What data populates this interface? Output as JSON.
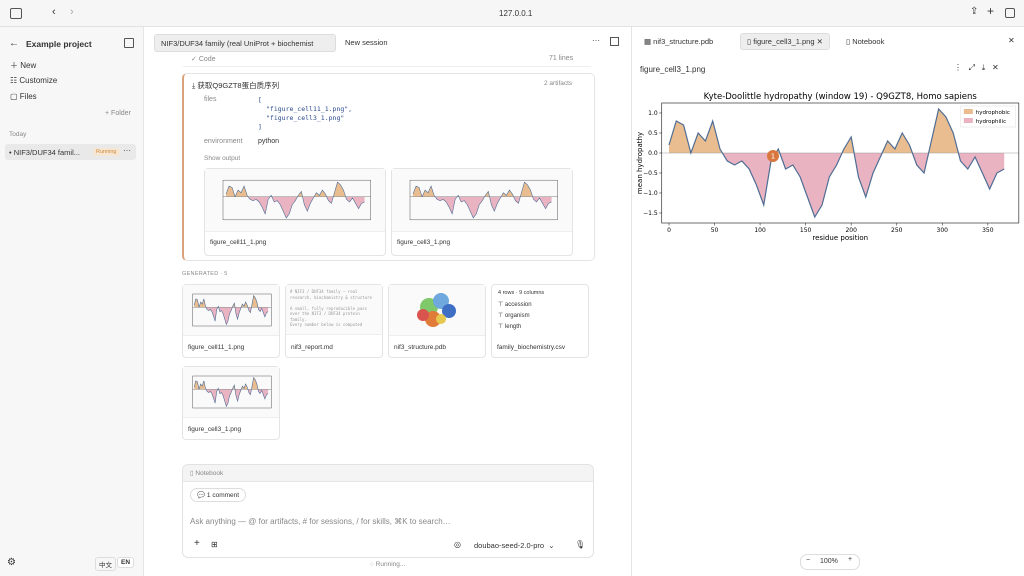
{
  "browser": {
    "url": "127.0.0.1"
  },
  "sidebar": {
    "project": "Example project",
    "menu": [
      "New",
      "Customize",
      "Files"
    ],
    "folder": "Folder",
    "section": "Today",
    "session": {
      "name": "NIF3/DUF34 famil...",
      "status": "Running"
    },
    "lang": [
      "中文",
      "EN"
    ]
  },
  "session": {
    "tabs": [
      "NIF3/DUF34 family (real UniProt + biochemist",
      "New session"
    ],
    "code_row": {
      "label": "Code",
      "lines": "71 lines"
    },
    "step": {
      "title": "获取Q9GZT8蛋白质序列",
      "artifacts": "2 artifacts",
      "files_label": "files",
      "files_lines": [
        "[",
        "\"figure_cell11_1.png\",",
        "\"figure_cell3_1.png\"",
        "]"
      ],
      "env_label": "environment",
      "env_value": "python",
      "show_output": "Show output",
      "outputs": [
        "figure_cell11_1.png",
        "figure_cell3_1.png"
      ]
    },
    "generated": "GENERATED · 5",
    "cards": [
      "figure_cell11_1.png",
      "nif3_report.md",
      "nif3_structure.pdb",
      "family_biochemistry.csv",
      "figure_cell3_1.png"
    ],
    "md_preview": [
      "# NIF3 / DUF34 family — real",
      "research, biochemistry & structure",
      "A small, fully reproducible pass",
      "over the NIF3 / DUF34 protein",
      "family.",
      "Every number below is computed"
    ],
    "csv_preview": {
      "shape": "4 rows · 9 columns",
      "columns": [
        "accession",
        "organism",
        "length"
      ]
    },
    "notebook": "Notebook",
    "comment": "1 comment",
    "placeholder": "Ask anything — @ for artifacts, # for sessions, / for skills, ⌘K to search…",
    "model": "doubao-seed-2.0-pro",
    "status": "Running..."
  },
  "viewer": {
    "tabs": [
      "nif3_structure.pdb",
      "figure_cell3_1.png",
      "Notebook"
    ],
    "file_title": "figure_cell3_1.png",
    "zoom": "100%",
    "pin": "1"
  },
  "chart_data": {
    "type": "area",
    "title": "Kyte-Doolittle hydropathy (window 19) - Q9GZT8, Homo sapiens",
    "xlabel": "residue position",
    "ylabel": "mean hydropathy",
    "x": [
      0,
      8,
      16,
      24,
      32,
      40,
      48,
      56,
      64,
      72,
      80,
      88,
      96,
      104,
      112,
      120,
      128,
      136,
      144,
      152,
      160,
      168,
      176,
      184,
      192,
      200,
      208,
      216,
      224,
      232,
      240,
      248,
      256,
      264,
      272,
      280,
      288,
      296,
      304,
      312,
      320,
      328,
      336,
      344,
      352,
      360,
      368
    ],
    "values": [
      0.2,
      0.8,
      0.7,
      0.0,
      0.5,
      0.3,
      0.8,
      0.1,
      -0.2,
      -0.3,
      -0.2,
      -0.4,
      -0.8,
      -1.3,
      -0.2,
      0.1,
      -0.4,
      -0.3,
      -0.6,
      -1.1,
      -1.6,
      -1.3,
      -0.6,
      -0.3,
      0.1,
      0.4,
      -0.6,
      -1.1,
      -0.5,
      -0.1,
      0.3,
      0.1,
      0.5,
      0.2,
      -0.3,
      -0.5,
      0.3,
      1.1,
      0.9,
      0.5,
      -0.2,
      -0.4,
      -0.1,
      -0.5,
      -0.9,
      -0.5,
      -0.4
    ],
    "line_color": "#4f6d94",
    "fills": [
      {
        "name": "hydrophobic",
        "color": "#e9bd8f"
      },
      {
        "name": "hydrophilic",
        "color": "#e9b3c1"
      }
    ],
    "legend": "upper right",
    "zero_line": true,
    "xlim": [
      -8,
      384
    ],
    "xticks": [
      0,
      50,
      100,
      150,
      200,
      250,
      300,
      350
    ],
    "ylim": [
      -1.75,
      1.25
    ],
    "yticks": [
      {
        "value": 1,
        "label": "1.0"
      },
      0.5,
      {
        "value": 0,
        "label": "0.0"
      },
      {
        "value": -0.5,
        "label": "−0.5"
      },
      {
        "value": -1,
        "label": "−1.0"
      },
      {
        "value": -1.5,
        "label": "−1.5"
      }
    ]
  }
}
